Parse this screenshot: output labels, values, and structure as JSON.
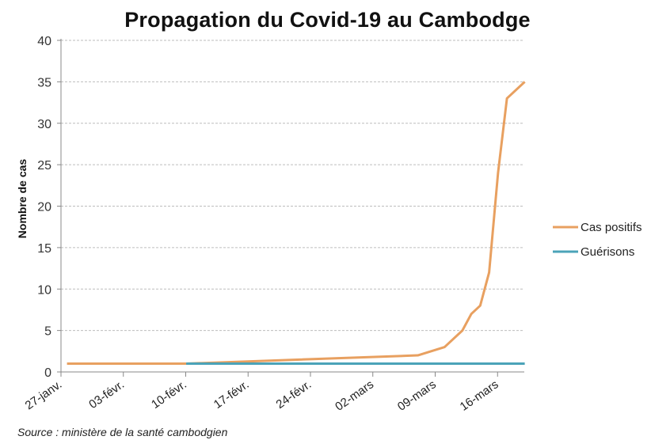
{
  "chart_data": {
    "type": "line",
    "title": "Propagation du Covid-19 au Cambodge",
    "xlabel": "",
    "ylabel": "Nombre de cas",
    "ylim": [
      0,
      40
    ],
    "yticks": [
      0,
      5,
      10,
      15,
      20,
      25,
      30,
      35,
      40
    ],
    "xtick_labels": [
      "27-janv.",
      "03-févr.",
      "10-févr.",
      "17-févr.",
      "24-févr.",
      "02-mars",
      "09-mars",
      "16-mars"
    ],
    "grid": "horizontal dashed",
    "legend_position": "right",
    "x_dates": [
      "27-janv.",
      "10-févr.",
      "07-mars",
      "10-mars",
      "12-mars",
      "13-mars",
      "14-mars",
      "15-mars",
      "16-mars",
      "17-mars",
      "19-mars"
    ],
    "series": [
      {
        "name": "Cas positifs",
        "color": "#E8A060",
        "values": [
          1,
          1,
          2,
          3,
          5,
          7,
          8,
          12,
          24,
          33,
          35
        ]
      },
      {
        "name": "Guérisons",
        "color": "#4BA3B8",
        "values": [
          null,
          1,
          1,
          1,
          1,
          1,
          1,
          1,
          1,
          1,
          1
        ]
      }
    ],
    "source": "Source : ministère de la santé cambodgien"
  },
  "title": "Propagation du Covid-19 au Cambodge",
  "axis": {
    "ylabel": "Nombre de cas"
  },
  "legend": {
    "items": [
      {
        "label": "Cas positifs",
        "color": "#E8A060"
      },
      {
        "label": "Guérisons",
        "color": "#4BA3B8"
      }
    ]
  },
  "source": "Source : ministère de la santé cambodgien"
}
